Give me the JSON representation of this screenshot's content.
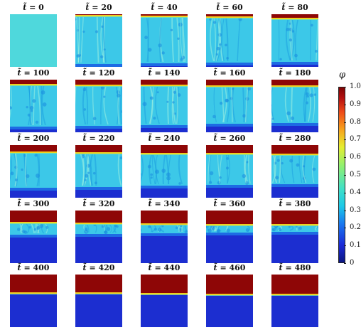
{
  "figure": {
    "panels": [
      {
        "label_var": "t̃",
        "label_val": "= 0"
      },
      {
        "label_var": "t̃",
        "label_val": "= 20"
      },
      {
        "label_var": "t̃",
        "label_val": "= 40"
      },
      {
        "label_var": "t̃",
        "label_val": "= 60"
      },
      {
        "label_var": "t̃",
        "label_val": "= 80"
      },
      {
        "label_var": "t̃",
        "label_val": "= 100"
      },
      {
        "label_var": "t̃",
        "label_val": "= 120"
      },
      {
        "label_var": "t̃",
        "label_val": "= 140"
      },
      {
        "label_var": "t̃",
        "label_val": "= 160"
      },
      {
        "label_var": "t̃",
        "label_val": "= 180"
      },
      {
        "label_var": "t̃",
        "label_val": "= 200"
      },
      {
        "label_var": "t̃",
        "label_val": "= 220"
      },
      {
        "label_var": "t̃",
        "label_val": "= 240"
      },
      {
        "label_var": "t̃",
        "label_val": "= 260"
      },
      {
        "label_var": "t̃",
        "label_val": "= 280"
      },
      {
        "label_var": "t̃",
        "label_val": "= 300"
      },
      {
        "label_var": "t̃",
        "label_val": "= 320"
      },
      {
        "label_var": "t̃",
        "label_val": "= 340"
      },
      {
        "label_var": "t̃",
        "label_val": "= 360"
      },
      {
        "label_var": "t̃",
        "label_val": "= 380"
      },
      {
        "label_var": "t̃",
        "label_val": "= 400"
      },
      {
        "label_var": "t̃",
        "label_val": "= 420"
      },
      {
        "label_var": "t̃",
        "label_val": "= 440"
      },
      {
        "label_var": "t̃",
        "label_val": "= 460"
      },
      {
        "label_var": "t̃",
        "label_val": "= 480"
      }
    ],
    "colorbar": {
      "label": "φ",
      "ticks": [
        "1.0",
        "0.9",
        "0.8",
        "0.7",
        "0.6",
        "0.5",
        "0.4",
        "0.3",
        "0.2",
        "0.1",
        "0"
      ]
    },
    "colors": {
      "top_layer": "#8e0606",
      "interface": "#f0d020",
      "mixed": "#3cc8e8",
      "bottom_layer": "#1c2ed0"
    }
  }
}
